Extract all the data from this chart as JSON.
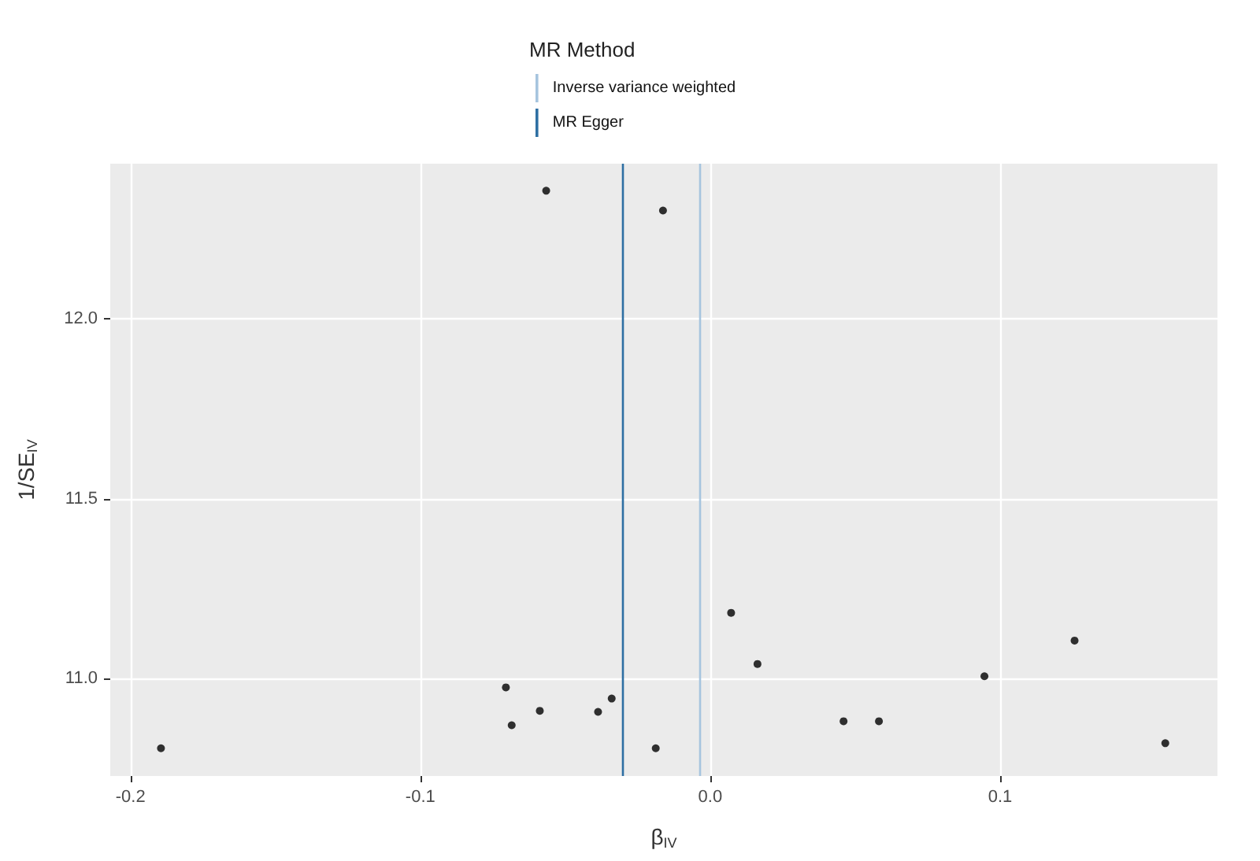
{
  "chart_data": {
    "type": "scatter",
    "xlabel": "β$_{IV}$",
    "ylabel": "1/SE$_{IV}$",
    "legend_title": "MR Method",
    "x": [
      -0.1895,
      -0.0705,
      -0.0685,
      -0.0588,
      -0.0566,
      -0.0387,
      -0.034,
      -0.0163,
      -0.0188,
      0.0072,
      0.0163,
      0.046,
      0.0582,
      0.0946,
      0.1257,
      0.157
    ],
    "series": [
      {
        "color": "#000000",
        "values": [
          10.807,
          10.976,
          10.871,
          10.911,
          12.355,
          10.908,
          10.945,
          12.3,
          10.807,
          11.183,
          11.041,
          10.882,
          10.882,
          11.007,
          11.106,
          10.821
        ]
      }
    ],
    "xlim": [
      -0.207,
      0.175
    ],
    "ylim": [
      10.73,
      12.43
    ],
    "xticks": [
      -0.2,
      -0.1,
      {
        "value": 0,
        "label": "0.0"
      },
      0.1
    ],
    "yticks": [
      {
        "value": 11,
        "label": "11.0"
      },
      11.5,
      {
        "value": 12,
        "label": "12.0"
      }
    ],
    "ref_lines": [
      {
        "axis": "x",
        "value": -0.0036,
        "label": "Inverse variance weighted",
        "color": "#a6c4de"
      },
      {
        "axis": "x",
        "value": -0.03,
        "label": "MR Egger",
        "color": "#2e6fa3"
      }
    ],
    "grid": true,
    "legend": "top",
    "marker": "circle"
  }
}
